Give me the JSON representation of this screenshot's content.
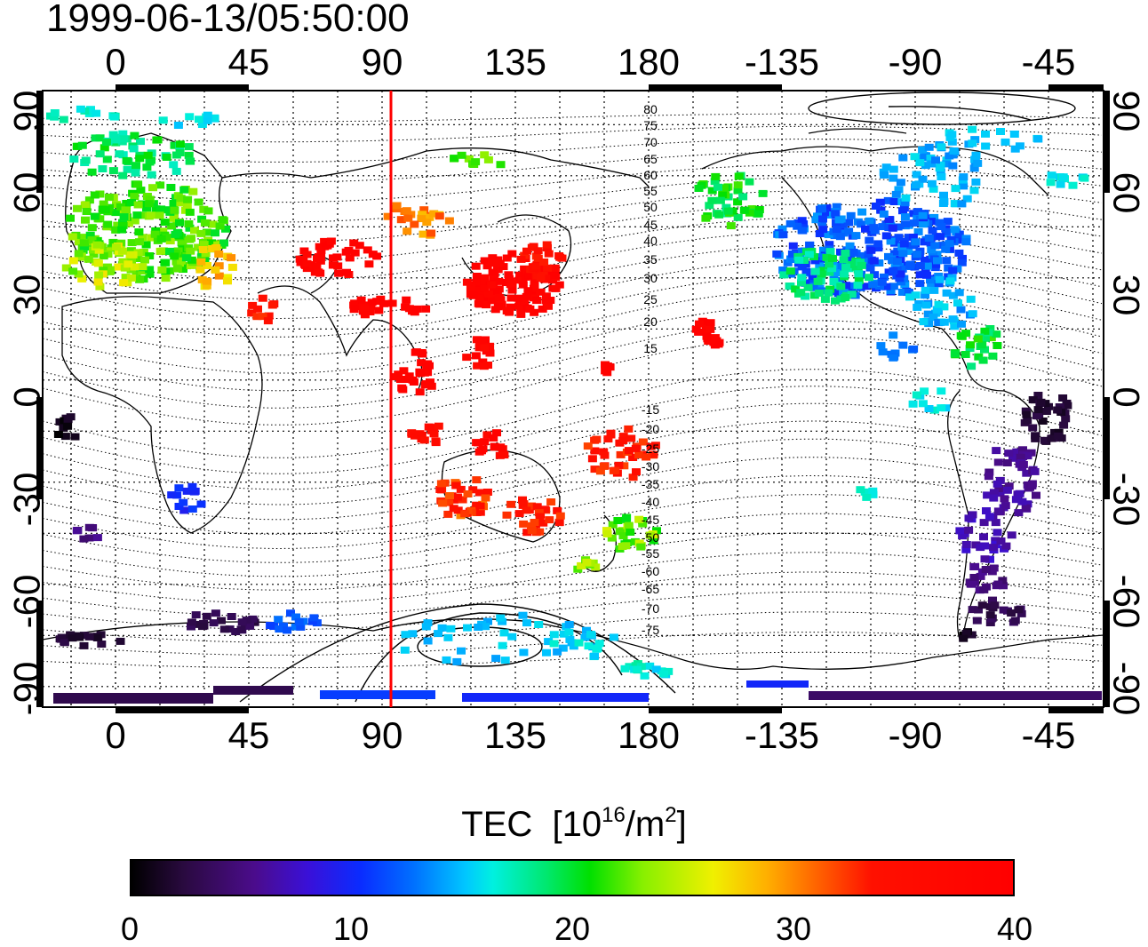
{
  "timestamp": "1999-06-13/05:50:00",
  "map": {
    "top_lon_labels": [
      "0",
      "45",
      "90",
      "135",
      "180",
      "-135",
      "-90",
      "-45"
    ],
    "bottom_lon_labels": [
      "0",
      "45",
      "90",
      "135",
      "180",
      "-135",
      "-90",
      "-45"
    ],
    "left_lat_labels": [
      "90",
      "60",
      "30",
      "0",
      "-30",
      "-60",
      "-90"
    ],
    "right_lat_labels": [
      "90",
      "60",
      "30",
      "0",
      "-30",
      "-60",
      "-90"
    ],
    "contour_labels_north": [
      "80",
      "75",
      "70",
      "65",
      "60",
      "55",
      "50",
      "45",
      "40",
      "35",
      "30",
      "25",
      "20",
      "15"
    ],
    "contour_labels_south": [
      "-15",
      "-20",
      "-25",
      "-30",
      "-35",
      "-40",
      "-45",
      "-50",
      "-55",
      "-60",
      "-65",
      "-70",
      "-75"
    ],
    "terminator_longitude": 93,
    "terminator_color": "#ff0000"
  },
  "colorbar": {
    "title": "TEC",
    "unit_prefix": "[10",
    "unit_exp": "16",
    "unit_mid": "/m",
    "unit_exp2": "2",
    "unit_suffix": "]",
    "ticks": [
      "0",
      "10",
      "20",
      "30",
      "40"
    ],
    "range": [
      0,
      40
    ]
  }
}
